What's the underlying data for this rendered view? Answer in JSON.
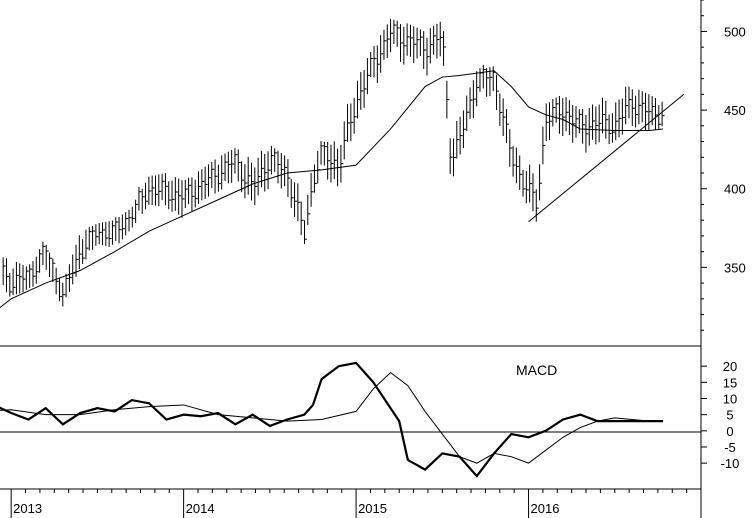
{
  "chart_data": [
    {
      "type": "line",
      "panel": "price",
      "title": "",
      "ylim": [
        300,
        520
      ],
      "y_ticks": [
        350,
        400,
        450,
        500
      ],
      "y_tick_labels": [
        "350",
        "400",
        "450",
        "500"
      ],
      "bar_style": "vertical high-low bars, weekly",
      "price_series": {
        "x": [
          2012.8,
          2012.9,
          2013.0,
          2013.1,
          2013.2,
          2013.3,
          2013.4,
          2013.5,
          2013.6,
          2013.7,
          2013.8,
          2013.9,
          2014.0,
          2014.1,
          2014.2,
          2014.3,
          2014.4,
          2014.5,
          2014.6,
          2014.7,
          2014.75,
          2014.8,
          2014.9,
          2015.0,
          2015.1,
          2015.2,
          2015.3,
          2015.4,
          2015.5,
          2015.55,
          2015.6,
          2015.7,
          2015.8,
          2015.9,
          2016.0,
          2016.05,
          2016.1,
          2016.2,
          2016.3,
          2016.4,
          2016.5,
          2016.6,
          2016.7,
          2016.78
        ],
        "close": [
          340,
          352,
          340,
          345,
          362,
          332,
          360,
          373,
          372,
          385,
          400,
          398,
          395,
          402,
          410,
          418,
          400,
          420,
          410,
          370,
          405,
          423,
          415,
          455,
          480,
          500,
          495,
          490,
          497,
          420,
          430,
          470,
          472,
          420,
          398,
          390,
          445,
          450,
          440,
          442,
          440,
          455,
          448,
          448
        ],
        "high": [
          348,
          358,
          355,
          350,
          365,
          340,
          372,
          378,
          380,
          388,
          408,
          410,
          405,
          412,
          420,
          426,
          420,
          428,
          420,
          415,
          420,
          428,
          440,
          470,
          490,
          508,
          505,
          500,
          507,
          460,
          448,
          475,
          478,
          440,
          430,
          425,
          455,
          460,
          450,
          455,
          465,
          465,
          460,
          455
        ],
        "low": [
          332,
          340,
          332,
          335,
          345,
          325,
          350,
          365,
          362,
          375,
          390,
          388,
          380,
          392,
          398,
          405,
          385,
          400,
          395,
          365,
          395,
          410,
          395,
          440,
          460,
          480,
          478,
          470,
          475,
          403,
          410,
          450,
          455,
          410,
          388,
          378,
          430,
          432,
          405,
          425,
          430,
          440,
          435,
          440
        ]
      },
      "moving_average": {
        "x": [
          2012.8,
          2013.0,
          2013.2,
          2013.4,
          2013.6,
          2013.8,
          2014.0,
          2014.2,
          2014.4,
          2014.6,
          2014.8,
          2015.0,
          2015.2,
          2015.4,
          2015.5,
          2015.6,
          2015.8,
          2015.9,
          2016.0,
          2016.1,
          2016.2,
          2016.3,
          2016.5,
          2016.6,
          2016.7,
          2016.78
        ],
        "y": [
          313,
          330,
          340,
          348,
          360,
          373,
          383,
          393,
          403,
          410,
          412,
          415,
          438,
          465,
          471,
          472,
          475,
          465,
          452,
          447,
          444,
          438,
          437,
          437,
          437,
          438
        ]
      },
      "trendline": {
        "x": [
          2016.0,
          2016.9
        ],
        "y": [
          379,
          460
        ]
      }
    },
    {
      "type": "line",
      "panel": "indicator",
      "title": "MACD",
      "ylim": [
        -18,
        25
      ],
      "y_ticks": [
        20,
        15,
        10,
        5,
        0,
        -5,
        -10
      ],
      "y_tick_labels": [
        "20",
        "15",
        "10",
        "5",
        "0",
        "-5",
        "-10"
      ],
      "zero_line": true,
      "series": [
        {
          "values_x": [
            2012.8,
            2012.9,
            2013.0,
            2013.1,
            2013.2,
            2013.3,
            2013.4,
            2013.5,
            2013.6,
            2013.7,
            2013.8,
            2013.9,
            2014.0,
            2014.1,
            2014.2,
            2014.3,
            2014.4,
            2014.5,
            2014.6,
            2014.7,
            2014.75,
            2014.8,
            2014.9,
            2015.0,
            2015.1,
            2015.2,
            2015.25,
            2015.3,
            2015.4,
            2015.5,
            2015.6,
            2015.7,
            2015.8,
            2015.9,
            2016.0,
            2016.1,
            2016.2,
            2016.3,
            2016.4,
            2016.5,
            2016.6,
            2016.7,
            2016.78
          ],
          "values_y": [
            5,
            8,
            5.5,
            3.5,
            7,
            2,
            5.5,
            7,
            6,
            9.5,
            8.5,
            3.5,
            5,
            4.5,
            5.5,
            2,
            5,
            1.5,
            3.5,
            5,
            8,
            16,
            20,
            21,
            15,
            7,
            3,
            -9,
            -12,
            -7,
            -8,
            -14,
            -7,
            -1,
            -2,
            0,
            3.5,
            5,
            3,
            3,
            3,
            3,
            3
          ]
        },
        {
          "values_x": [
            2012.8,
            2013.0,
            2013.2,
            2013.4,
            2013.6,
            2013.8,
            2014.0,
            2014.2,
            2014.4,
            2014.6,
            2014.8,
            2015.0,
            2015.1,
            2015.2,
            2015.3,
            2015.4,
            2015.5,
            2015.6,
            2015.7,
            2015.8,
            2015.9,
            2016.0,
            2016.1,
            2016.2,
            2016.3,
            2016.4,
            2016.5,
            2016.6,
            2016.7,
            2016.78
          ],
          "values_y": [
            6,
            6.5,
            5,
            5,
            6.5,
            7.5,
            8,
            5,
            4,
            3,
            3.5,
            6,
            13,
            18,
            14,
            6,
            -1,
            -8,
            -10,
            -7,
            -8,
            -10,
            -6,
            -2,
            1,
            3,
            4,
            3.5,
            3,
            3
          ]
        }
      ]
    }
  ],
  "x_axis": {
    "type": "time",
    "range": [
      2012.97,
      2017.0
    ],
    "years": [
      2013,
      2014,
      2015,
      2016
    ],
    "year_labels": [
      "2013",
      "2014",
      "2015",
      "2016"
    ]
  }
}
